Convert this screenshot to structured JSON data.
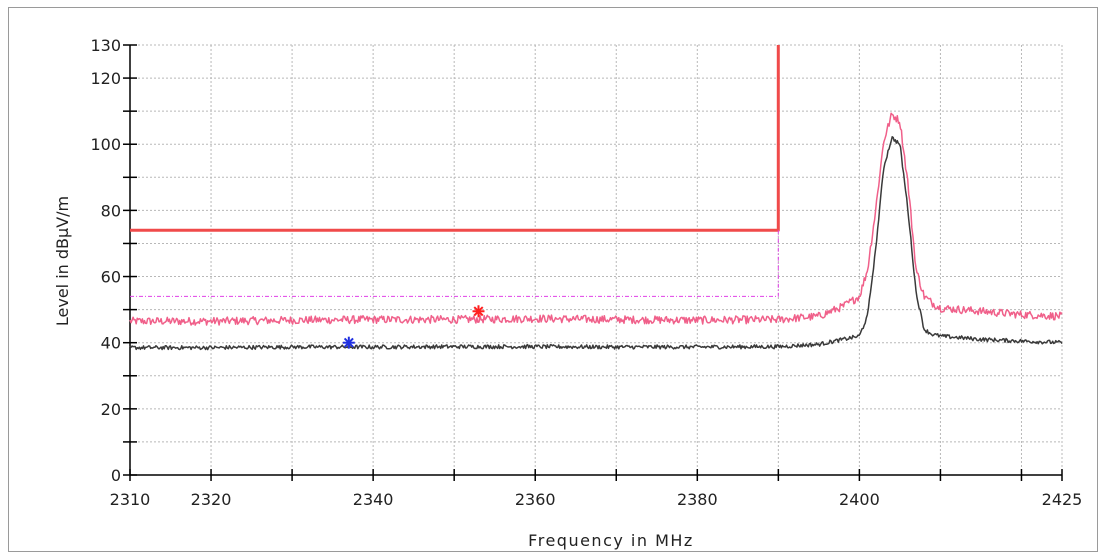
{
  "chart_data": {
    "type": "line",
    "title": "",
    "xlabel": "Frequency in MHz",
    "ylabel": "Level in dBµV/m",
    "xlim": [
      2310,
      2425
    ],
    "ylim": [
      0,
      130
    ],
    "x_ticks": [
      2310,
      2320,
      2340,
      2360,
      2380,
      2400,
      2425
    ],
    "x_minor_ticks": [
      2330,
      2350,
      2370,
      2390,
      2410,
      2420
    ],
    "y_ticks": [
      0,
      20,
      40,
      60,
      80,
      100,
      120,
      130
    ],
    "y_minor_ticks": [
      10,
      30,
      50,
      70,
      90,
      110
    ],
    "grid": true,
    "colors": {
      "peak_trace": "#f0608a",
      "average_trace": "#3a3a3a",
      "peak_limit": "#f04a4a",
      "average_limit": "#e040e8",
      "peak_marker": "#ff2020",
      "average_marker": "#2030e0",
      "grid": "#b8b8b8"
    },
    "series": [
      {
        "role": "peak_trace",
        "x": [
          2310,
          2320,
          2330,
          2340,
          2350,
          2360,
          2370,
          2380,
          2390,
          2395,
          2398,
          2400,
          2401,
          2402,
          2403,
          2404,
          2405,
          2406,
          2407,
          2408,
          2409,
          2410,
          2415,
          2420,
          2425
        ],
        "values": [
          46.5,
          46.5,
          46.8,
          47,
          47,
          47.3,
          47,
          46.8,
          47,
          48,
          51,
          54,
          62,
          80,
          101,
          109,
          107,
          88,
          62,
          54,
          52,
          50.5,
          49.5,
          48.5,
          48
        ]
      },
      {
        "role": "average_trace",
        "x": [
          2310,
          2320,
          2330,
          2340,
          2350,
          2360,
          2370,
          2380,
          2390,
          2395,
          2398,
          2400,
          2401,
          2402,
          2403,
          2404,
          2405,
          2406,
          2407,
          2408,
          2409,
          2410,
          2415,
          2420,
          2425
        ],
        "values": [
          38.5,
          38.5,
          38.7,
          38.7,
          38.8,
          38.8,
          38.7,
          38.7,
          38.8,
          39.5,
          41,
          42,
          48,
          68,
          93,
          102,
          100,
          80,
          55,
          44,
          42.5,
          42,
          41,
          40.5,
          40
        ]
      },
      {
        "role": "peak_limit",
        "x": [
          2310,
          2390,
          2390
        ],
        "values": [
          74,
          74,
          130
        ]
      },
      {
        "role": "average_limit",
        "x": [
          2310,
          2390,
          2390
        ],
        "values": [
          54,
          54,
          74
        ]
      }
    ],
    "markers": [
      {
        "role": "peak_marker",
        "x": 2353,
        "y": 49.5
      },
      {
        "role": "average_marker",
        "x": 2337,
        "y": 40
      }
    ]
  }
}
